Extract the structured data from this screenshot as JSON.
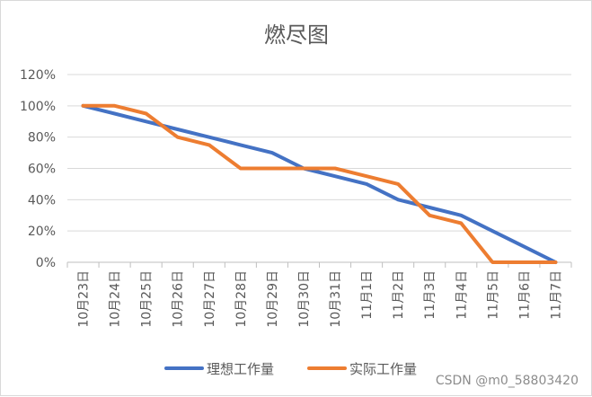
{
  "chart_data": {
    "type": "line",
    "title": "燃尽图",
    "categories": [
      "10月23日",
      "10月24日",
      "10月25日",
      "10月26日",
      "10月27日",
      "10月28日",
      "10月29日",
      "10月30日",
      "10月31日",
      "11月1日",
      "11月2日",
      "11月3日",
      "11月4日",
      "11月5日",
      "11月6日",
      "11月7日"
    ],
    "y_ticks": [
      "0%",
      "20%",
      "40%",
      "60%",
      "80%",
      "100%",
      "120%"
    ],
    "ylim": [
      0,
      120
    ],
    "grid": true,
    "legend_position": "bottom",
    "series": [
      {
        "name": "理想工作量",
        "color": "#4472c4",
        "values": [
          100,
          95,
          90,
          85,
          80,
          75,
          70,
          60,
          55,
          50,
          40,
          35,
          30,
          20,
          10,
          0
        ]
      },
      {
        "name": "实际工作量",
        "color": "#ed7d31",
        "values": [
          100,
          100,
          95,
          80,
          75,
          60,
          60,
          60,
          60,
          55,
          50,
          30,
          25,
          0,
          0,
          0
        ]
      }
    ]
  },
  "watermark": "CSDN @m0_58803420"
}
